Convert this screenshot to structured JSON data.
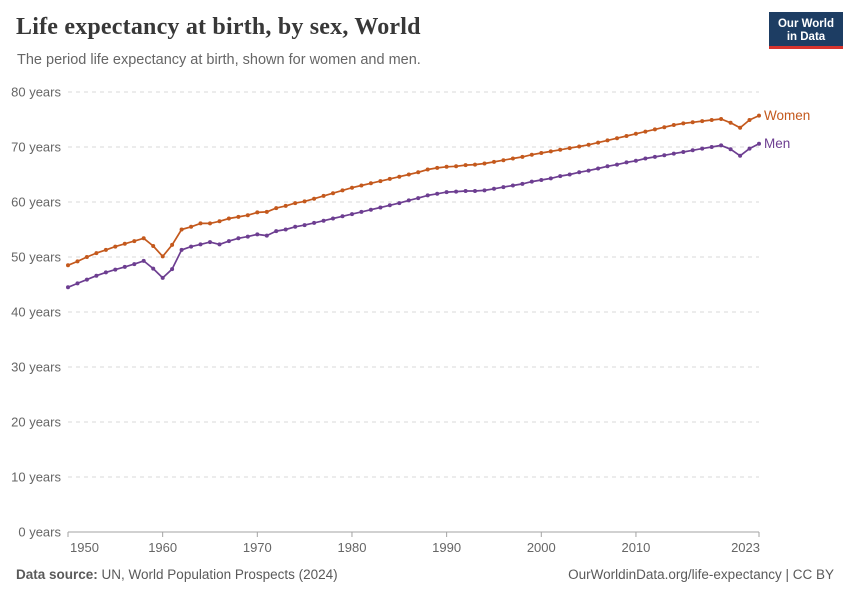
{
  "header": {
    "title": "Life expectancy at birth, by sex, World",
    "subtitle": "The period life expectancy at birth, shown for women and men.",
    "logo": {
      "line1": "Our World",
      "line2": "in Data",
      "bg_color": "#1d3d63",
      "accent_color": "#d7342e"
    }
  },
  "chart_data": {
    "type": "line",
    "title": "Life expectancy at birth, by sex, World",
    "xlabel": "",
    "ylabel": "years",
    "xlim": [
      1950,
      2023
    ],
    "ylim": [
      0,
      80
    ],
    "x_ticks": [
      1950,
      1960,
      1970,
      1980,
      1990,
      2000,
      2010,
      2023
    ],
    "y_ticks": [
      0,
      10,
      20,
      30,
      40,
      50,
      60,
      70,
      80
    ],
    "y_tick_suffix": " years",
    "grid": "horizontal-dashed",
    "legend_position": "line-end-labels",
    "markers": true,
    "x": [
      1950,
      1951,
      1952,
      1953,
      1954,
      1955,
      1956,
      1957,
      1958,
      1959,
      1960,
      1961,
      1962,
      1963,
      1964,
      1965,
      1966,
      1967,
      1968,
      1969,
      1970,
      1971,
      1972,
      1973,
      1974,
      1975,
      1976,
      1977,
      1978,
      1979,
      1980,
      1981,
      1982,
      1983,
      1984,
      1985,
      1986,
      1987,
      1988,
      1989,
      1990,
      1991,
      1992,
      1993,
      1994,
      1995,
      1996,
      1997,
      1998,
      1999,
      2000,
      2001,
      2002,
      2003,
      2004,
      2005,
      2006,
      2007,
      2008,
      2009,
      2010,
      2011,
      2012,
      2013,
      2014,
      2015,
      2016,
      2017,
      2018,
      2019,
      2020,
      2021,
      2022,
      2023
    ],
    "series": [
      {
        "name": "Women",
        "color": "#c4591d",
        "values": [
          48.5,
          49.2,
          50.0,
          50.7,
          51.3,
          51.9,
          52.4,
          52.9,
          53.4,
          52.0,
          50.1,
          52.2,
          55.0,
          55.5,
          56.1,
          56.1,
          56.5,
          57.0,
          57.3,
          57.6,
          58.1,
          58.2,
          58.9,
          59.3,
          59.8,
          60.1,
          60.6,
          61.1,
          61.6,
          62.1,
          62.6,
          63.0,
          63.4,
          63.8,
          64.2,
          64.6,
          65.0,
          65.4,
          65.9,
          66.2,
          66.4,
          66.5,
          66.7,
          66.8,
          67.0,
          67.3,
          67.6,
          67.9,
          68.2,
          68.6,
          68.9,
          69.2,
          69.5,
          69.8,
          70.1,
          70.4,
          70.8,
          71.2,
          71.6,
          72.0,
          72.4,
          72.8,
          73.2,
          73.6,
          74.0,
          74.3,
          74.5,
          74.7,
          74.9,
          75.1,
          74.4,
          73.5,
          74.9,
          75.7
        ]
      },
      {
        "name": "Men",
        "color": "#6d3e91",
        "values": [
          44.5,
          45.2,
          45.9,
          46.6,
          47.2,
          47.7,
          48.2,
          48.7,
          49.3,
          47.9,
          46.2,
          47.8,
          51.3,
          51.9,
          52.3,
          52.7,
          52.3,
          52.9,
          53.4,
          53.7,
          54.1,
          53.9,
          54.7,
          55.0,
          55.5,
          55.8,
          56.2,
          56.6,
          57.0,
          57.4,
          57.8,
          58.2,
          58.6,
          59.0,
          59.4,
          59.8,
          60.3,
          60.7,
          61.2,
          61.5,
          61.8,
          61.9,
          62.0,
          62.0,
          62.1,
          62.4,
          62.7,
          63.0,
          63.3,
          63.7,
          64.0,
          64.3,
          64.7,
          65.0,
          65.4,
          65.7,
          66.1,
          66.5,
          66.8,
          67.2,
          67.5,
          67.9,
          68.2,
          68.5,
          68.8,
          69.1,
          69.4,
          69.7,
          70.0,
          70.3,
          69.6,
          68.4,
          69.7,
          70.6
        ]
      }
    ],
    "style": {
      "grid_color": "#d9d9d9",
      "axis_color": "#a3a3a3",
      "tick_text_color": "#666666",
      "line_width": 1.7,
      "marker_radius": 2
    }
  },
  "footer": {
    "data_source_label": "Data source:",
    "data_source_value": "UN, World Population Prospects (2024)",
    "attribution": "OurWorldinData.org/life-expectancy | CC BY"
  }
}
